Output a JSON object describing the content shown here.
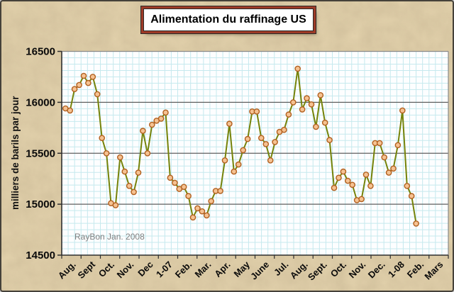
{
  "frame": {
    "background_color": "#e7d6b0",
    "border_color": "#45413a"
  },
  "chart_data": {
    "type": "line",
    "title": "Alimentation du raffinage US",
    "ylabel": "milliers de barils par jour",
    "xlabel": "",
    "annotation": "RayBon Jan. 2008",
    "ylim": [
      14500,
      16500
    ],
    "ytick_interval": 500,
    "ytick_values": [
      16500,
      16000,
      15500,
      15000,
      14500
    ],
    "categories": [
      "Aug.",
      "Sept",
      "Oct.",
      "Nov.",
      "Dec",
      "1-07",
      "Feb.",
      "Mar.",
      "Apr.",
      "May",
      "June",
      "Jul.",
      "Aug.",
      "Sept.",
      "Oct.",
      "Nov.",
      "Dec.",
      "1-08",
      "Feb.",
      "Mars"
    ],
    "x_period": "weekly, Aug. 2006 - Feb. 2008",
    "legend_position": "none",
    "grid": "fine cyan minor grid on, dark horizontal major gridlines at 500 intervals",
    "values": [
      15940,
      15920,
      16130,
      16170,
      16260,
      16190,
      16250,
      16080,
      15650,
      15500,
      15010,
      14990,
      15460,
      15320,
      15180,
      15120,
      15310,
      15720,
      15500,
      15780,
      15820,
      15840,
      15900,
      15260,
      15210,
      15150,
      15170,
      15080,
      14870,
      14960,
      14930,
      14890,
      15030,
      15130,
      15130,
      15430,
      15790,
      15320,
      15390,
      15530,
      15640,
      15910,
      15910,
      15650,
      15590,
      15430,
      15610,
      15710,
      15730,
      15880,
      16000,
      16330,
      15930,
      16040,
      15980,
      15760,
      16070,
      15800,
      15630,
      15160,
      15260,
      15320,
      15230,
      15190,
      15040,
      15050,
      15290,
      15180,
      15600,
      15600,
      15460,
      15310,
      15350,
      15580,
      15920,
      15180,
      15080,
      14810
    ],
    "colors": {
      "line": "#75830a",
      "marker_fill": "#f5c292",
      "marker_stroke": "#b2601f",
      "grid_minor": "#c6e9ee",
      "grid_major": "#5f5f5f",
      "plot_bg": "#fdfeff",
      "axis": "#2f2f2f",
      "plot_border": "#8a8a8a",
      "title_border": "#9e3a27",
      "watermark": "#7f7f7f",
      "background": "#e7d6b0"
    }
  }
}
